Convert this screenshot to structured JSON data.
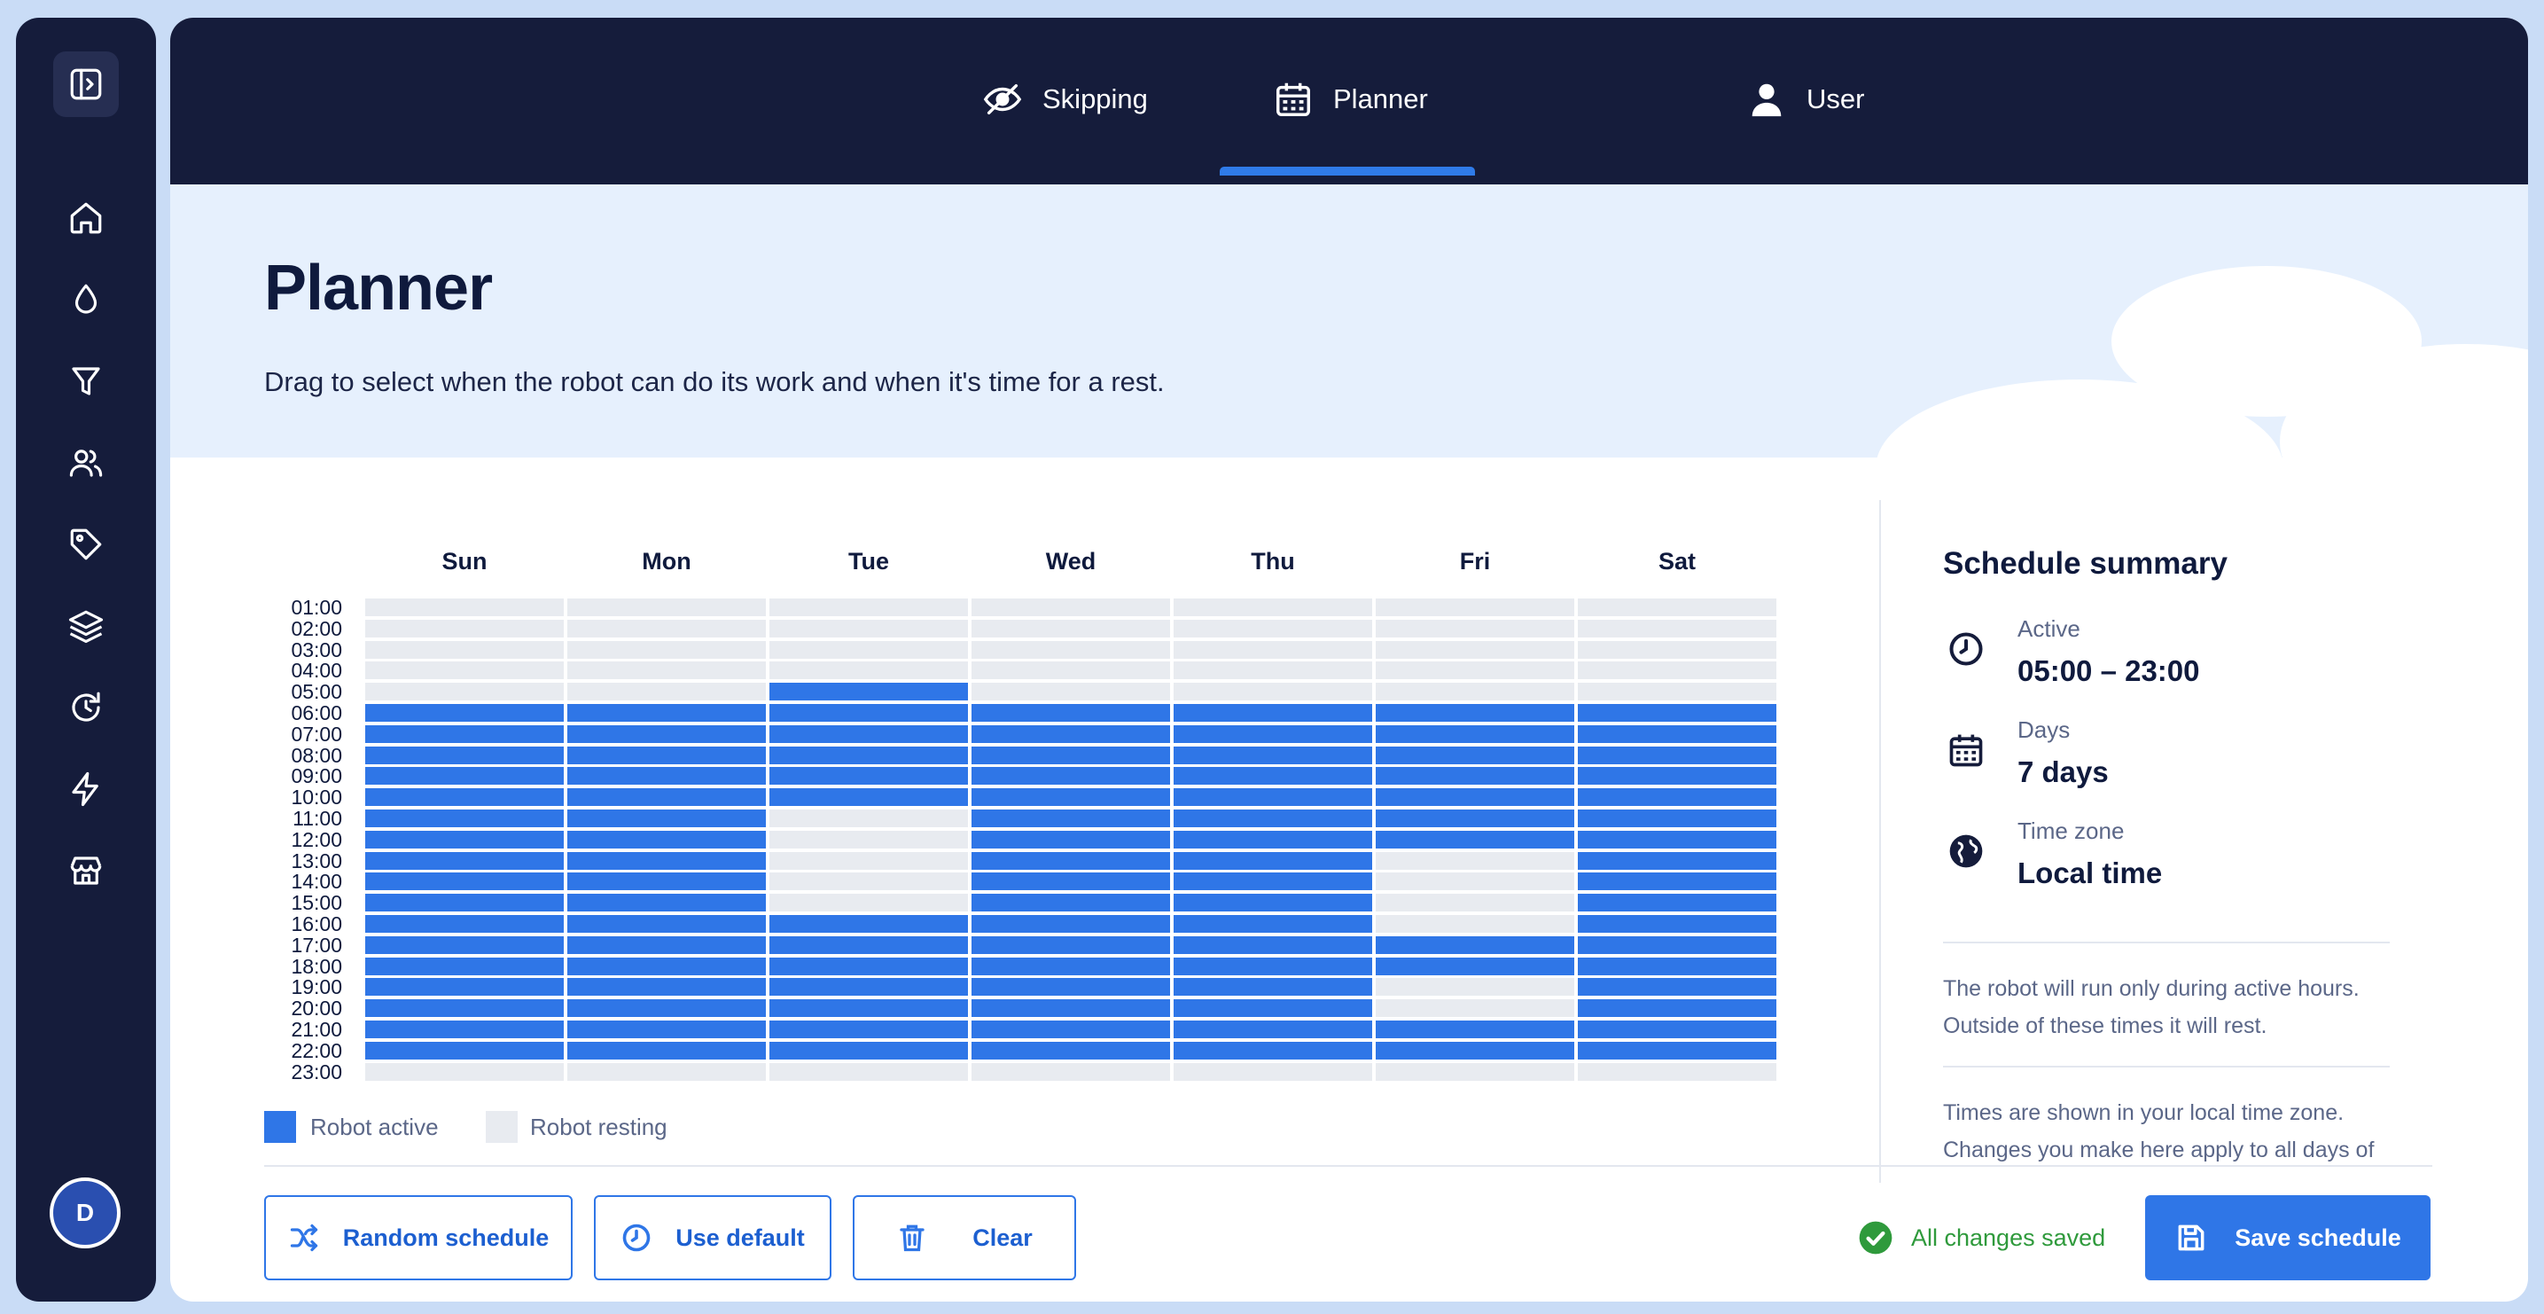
{
  "sidebar": {
    "toggle_icon": "sidebar-toggle-icon",
    "items": [
      {
        "name": "home",
        "icon": "home-icon"
      },
      {
        "name": "drop",
        "icon": "drop-icon"
      },
      {
        "name": "filter",
        "icon": "filter-icon"
      },
      {
        "name": "users",
        "icon": "users-icon"
      },
      {
        "name": "tags",
        "icon": "tag-icon"
      },
      {
        "name": "layers",
        "icon": "layers-icon"
      },
      {
        "name": "history",
        "icon": "history-icon"
      },
      {
        "name": "lightning",
        "icon": "lightning-icon"
      },
      {
        "name": "store",
        "icon": "store-icon"
      }
    ],
    "avatar_initial": "D"
  },
  "tabs": [
    {
      "label": "Skipping",
      "icon": "eye-slash-icon",
      "active": false
    },
    {
      "label": "Planner",
      "icon": "calendar-icon",
      "active": true
    },
    {
      "label": "User",
      "icon": "user-icon",
      "active": false
    }
  ],
  "page": {
    "title": "Planner",
    "description": "Drag to select when the robot can do its work and when it's time for a rest."
  },
  "schedule": {
    "days": [
      "Sun",
      "Mon",
      "Tue",
      "Wed",
      "Thu",
      "Fri",
      "Sat"
    ],
    "hours": [
      "01:00",
      "02:00",
      "03:00",
      "04:00",
      "05:00",
      "06:00",
      "07:00",
      "08:00",
      "09:00",
      "10:00",
      "11:00",
      "12:00",
      "13:00",
      "14:00",
      "15:00",
      "16:00",
      "17:00",
      "18:00",
      "19:00",
      "20:00",
      "21:00",
      "22:00",
      "23:00"
    ],
    "active": {
      "Sun": [
        "06:00",
        "07:00",
        "08:00",
        "09:00",
        "10:00",
        "11:00",
        "12:00",
        "13:00",
        "14:00",
        "15:00",
        "16:00",
        "17:00",
        "18:00",
        "19:00",
        "20:00",
        "21:00",
        "22:00"
      ],
      "Mon": [
        "06:00",
        "07:00",
        "08:00",
        "09:00",
        "10:00",
        "11:00",
        "12:00",
        "13:00",
        "14:00",
        "15:00",
        "16:00",
        "17:00",
        "18:00",
        "19:00",
        "20:00",
        "21:00",
        "22:00"
      ],
      "Tue": [
        "05:00",
        "06:00",
        "07:00",
        "08:00",
        "09:00",
        "10:00",
        "16:00",
        "17:00",
        "18:00",
        "19:00",
        "20:00",
        "21:00",
        "22:00"
      ],
      "Wed": [
        "06:00",
        "07:00",
        "08:00",
        "09:00",
        "10:00",
        "11:00",
        "12:00",
        "13:00",
        "14:00",
        "15:00",
        "16:00",
        "17:00",
        "18:00",
        "19:00",
        "20:00",
        "21:00",
        "22:00"
      ],
      "Thu": [
        "06:00",
        "07:00",
        "08:00",
        "09:00",
        "10:00",
        "11:00",
        "12:00",
        "13:00",
        "14:00",
        "15:00",
        "16:00",
        "17:00",
        "18:00",
        "19:00",
        "20:00",
        "21:00",
        "22:00"
      ],
      "Fri": [
        "06:00",
        "07:00",
        "08:00",
        "09:00",
        "10:00",
        "11:00",
        "12:00",
        "17:00",
        "18:00",
        "21:00",
        "22:00"
      ],
      "Sat": [
        "06:00",
        "07:00",
        "08:00",
        "09:00",
        "10:00",
        "11:00",
        "12:00",
        "13:00",
        "14:00",
        "15:00",
        "16:00",
        "17:00",
        "18:00",
        "19:00",
        "20:00",
        "21:00",
        "22:00"
      ]
    },
    "legend": {
      "active": "Robot active",
      "resting": "Robot resting"
    },
    "colors": {
      "active": "#2f76e7",
      "resting": "#e8ebf0"
    }
  },
  "summary": {
    "title": "Schedule summary",
    "active_label": "Active",
    "active_value": "05:00 – 23:00",
    "days_label": "Days",
    "days_value": "7 days",
    "timezone_label": "Time zone",
    "timezone_value": "Local time",
    "note1_line1": "The robot will run only during active hours.",
    "note1_line2": "Outside of these times it will rest.",
    "note2_line1": "Times are shown in your local time zone.",
    "note2_line2": "Changes you make here apply to all days of"
  },
  "footer": {
    "random_label": "Random schedule",
    "default_label": "Use default",
    "clear_label": "Clear",
    "saved_status": "All changes saved",
    "save_label": "Save schedule"
  }
}
